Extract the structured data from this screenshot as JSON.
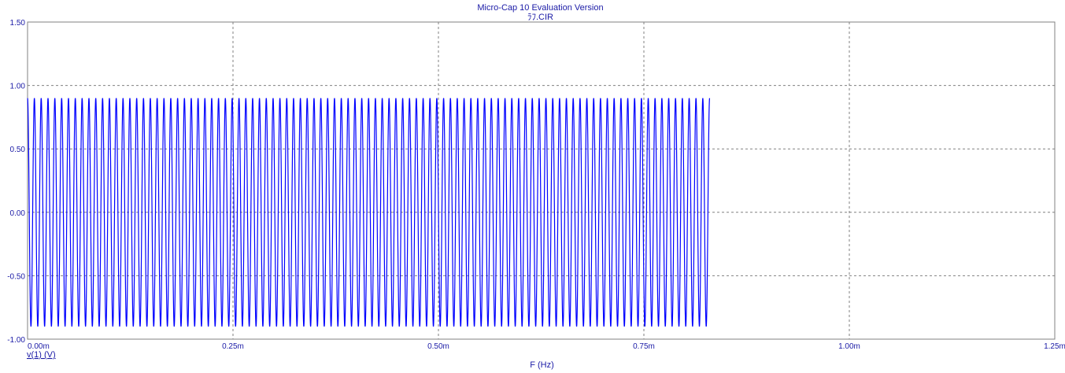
{
  "window": {
    "title": "Micro-Cap 10 Evaluation Version",
    "subtitle": "ﾗﾌ.CIR"
  },
  "chart_data": {
    "type": "line",
    "title": "Micro-Cap 10 Evaluation Version",
    "subtitle": "ﾗﾌ.CIR",
    "xlabel": "F (Hz)",
    "ylabel": "v(1) (V)",
    "xlim": [
      0,
      1.25
    ],
    "ylim": [
      -1.0,
      1.5
    ],
    "x_unit_suffix": "m",
    "x_ticks": [
      0,
      0.25,
      0.5,
      0.75,
      1.0,
      1.25
    ],
    "x_tick_labels": [
      "0.00m",
      "0.25m",
      "0.50m",
      "0.75m",
      "1.00m",
      "1.25m"
    ],
    "y_ticks": [
      1.5,
      1.0,
      0.5,
      0.0,
      -0.5,
      -1.0
    ],
    "y_tick_labels": [
      "1.50",
      "1.00",
      "0.50",
      "0.00",
      "-0.50",
      "-1.00"
    ],
    "grid": true,
    "series": [
      {
        "name": "v(1) (V)",
        "color": "#0000ff",
        "amplitude": 0.9,
        "x_end": 0.83,
        "cycles": 100,
        "waveform": "sine"
      }
    ]
  },
  "colors": {
    "axis_text": "#1a1aa6",
    "trace": "#0000ff",
    "grid": "#808080",
    "frame": "#808080",
    "background": "#ffffff"
  }
}
